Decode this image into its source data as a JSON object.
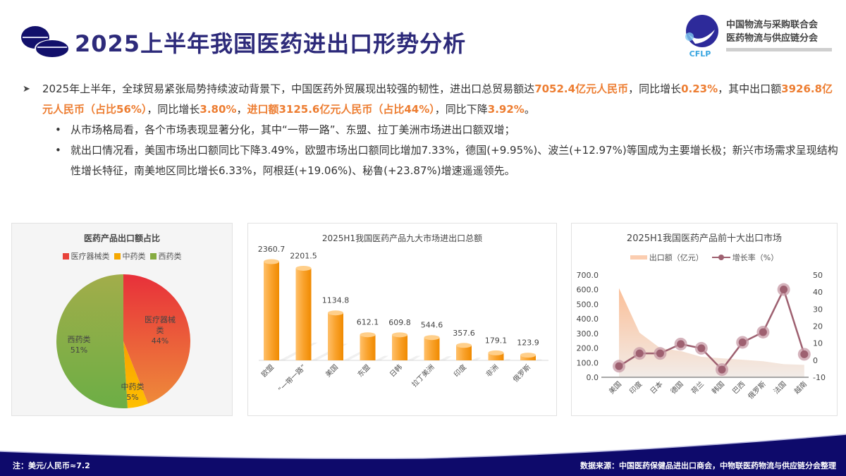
{
  "header": {
    "title": "2025上半年我国医药进出口形势分析",
    "logo": {
      "mark": "CFLP",
      "line1": "中国物流与采购联合会",
      "line2": "医药物流与供应链分会"
    }
  },
  "summary": {
    "main": [
      {
        "text": "2025年上半年，全球贸易紧张局势持续波动背景下，中国医药外贸展现出较强的韧性，进出口总贸易额达",
        "hl": false
      },
      {
        "text": "7052.4亿元人民币",
        "hl": true
      },
      {
        "text": "，同比增长",
        "hl": false
      },
      {
        "text": "0.23%",
        "hl": true
      },
      {
        "text": "，其中出口额",
        "hl": false
      },
      {
        "text": "3926.8亿元人民币（占比56%）",
        "hl": true
      },
      {
        "text": "，同比增长",
        "hl": false
      },
      {
        "text": "3.80%",
        "hl": true
      },
      {
        "text": "，",
        "hl": false
      },
      {
        "text": "进口额3125.6亿元人民币（占比44%）",
        "hl": true
      },
      {
        "text": "，同比下降",
        "hl": false
      },
      {
        "text": "3.92%",
        "hl": true
      },
      {
        "text": "。",
        "hl": false
      }
    ],
    "bullets": [
      "从市场格局看，各个市场表现显著分化，其中“一带一路”、东盟、拉丁美洲市场进出口额双增；",
      "就出口情况看，美国市场出口额同比下降3.49%，欧盟市场出口额同比增加7.33%，德国(+9.95%)、波兰(+12.97%)等国成为主要增长极；新兴市场需求呈现结构性增长特征，南美地区同比增长6.33%，阿根廷(+19.06%)、秘鲁(+23.87%)增速遥遥领先。"
    ]
  },
  "chart_data": [
    {
      "type": "pie",
      "title": "医药产品出口额占比",
      "categories": [
        "医疗器械类",
        "中药类",
        "西药类"
      ],
      "values": [
        44,
        5,
        51
      ],
      "labels": [
        "医疗器械类 44%",
        "中药类 5%",
        "西药类 51%"
      ],
      "colors": [
        "#e8423a",
        "#f5a800",
        "#86ac41"
      ],
      "legend_position": "top"
    },
    {
      "type": "bar",
      "title": "2025H1我国医药产品九大市场进出口总额",
      "categories": [
        "欧盟",
        "“一带一路”",
        "美国",
        "东盟",
        "日韩",
        "拉丁美洲",
        "印度",
        "非洲",
        "俄罗斯"
      ],
      "values": [
        2360.7,
        2201.5,
        1134.8,
        612.1,
        609.8,
        544.6,
        357.6,
        179.1,
        123.9
      ],
      "value_labels": [
        "2360.7",
        "2201.5",
        "1134.8",
        "612.1",
        "609.8",
        "544.6",
        "357.6",
        "179.1",
        "123.9"
      ],
      "xlabel": "",
      "ylabel": "",
      "color": "#f59a23",
      "grid": false
    },
    {
      "type": "area",
      "title": "2025H1我国医药产品前十大出口市场",
      "categories": [
        "美国",
        "印度",
        "日本",
        "德国",
        "荷兰",
        "韩国",
        "巴西",
        "俄罗斯",
        "法国",
        "越南"
      ],
      "series": [
        {
          "name": "出口额（亿元）",
          "type": "area",
          "axis": "left",
          "values": [
            610,
            305,
            200,
            180,
            140,
            130,
            120,
            110,
            90,
            85
          ]
        },
        {
          "name": "增长率（%）",
          "type": "line",
          "axis": "right",
          "values": [
            -3.5,
            4,
            4,
            9.5,
            7,
            -5.5,
            10.5,
            16.5,
            41.5,
            3.5
          ]
        }
      ],
      "left_axis": {
        "ylim": [
          0,
          700
        ],
        "ticks": [
          "0.0",
          "100.0",
          "200.0",
          "300.0",
          "400.0",
          "500.0",
          "600.0",
          "700.0"
        ]
      },
      "right_axis": {
        "ylim": [
          -10,
          50
        ],
        "ticks": [
          "-10",
          "0",
          "10",
          "20",
          "30",
          "40",
          "50"
        ]
      },
      "legend_position": "top",
      "grid": false
    }
  ],
  "footer": {
    "note": "注：美元/人民币≈7.2",
    "source": "数据来源：中国医药保健品进出口商会，中物联医药物流与供应链分会整理"
  }
}
